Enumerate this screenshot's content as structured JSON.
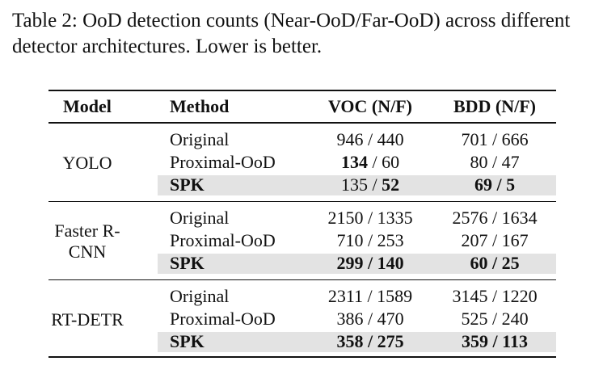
{
  "caption": "Table 2: OoD detection counts (Near-OoD/Far-OoD) across different detector architectures. Lower is better.",
  "table": {
    "columns": [
      "Model",
      "Method",
      "VOC (N/F)",
      "BDD (N/F)"
    ],
    "separator": " / ",
    "groups": [
      {
        "model": "YOLO",
        "rows": [
          {
            "method": "Original",
            "method_bold": false,
            "highlight": false,
            "voc": {
              "values": [
                946,
                440
              ],
              "bold": [
                false,
                false
              ]
            },
            "bdd": {
              "values": [
                701,
                666
              ],
              "bold": [
                false,
                false
              ]
            }
          },
          {
            "method": "Proximal-OoD",
            "method_bold": false,
            "highlight": false,
            "voc": {
              "values": [
                134,
                60
              ],
              "bold": [
                true,
                false
              ]
            },
            "bdd": {
              "values": [
                80,
                47
              ],
              "bold": [
                false,
                false
              ]
            }
          },
          {
            "method": "SPK",
            "method_bold": true,
            "highlight": true,
            "voc": {
              "values": [
                135,
                52
              ],
              "bold": [
                false,
                true
              ]
            },
            "bdd": {
              "values": [
                69,
                5
              ],
              "bold": [
                true,
                true
              ]
            }
          }
        ]
      },
      {
        "model": "Faster R-CNN",
        "rows": [
          {
            "method": "Original",
            "method_bold": false,
            "highlight": false,
            "voc": {
              "values": [
                2150,
                1335
              ],
              "bold": [
                false,
                false
              ]
            },
            "bdd": {
              "values": [
                2576,
                1634
              ],
              "bold": [
                false,
                false
              ]
            }
          },
          {
            "method": "Proximal-OoD",
            "method_bold": false,
            "highlight": false,
            "voc": {
              "values": [
                710,
                253
              ],
              "bold": [
                false,
                false
              ]
            },
            "bdd": {
              "values": [
                207,
                167
              ],
              "bold": [
                false,
                false
              ]
            }
          },
          {
            "method": "SPK",
            "method_bold": true,
            "highlight": true,
            "voc": {
              "values": [
                299,
                140
              ],
              "bold": [
                true,
                true
              ]
            },
            "bdd": {
              "values": [
                60,
                25
              ],
              "bold": [
                true,
                true
              ]
            }
          }
        ]
      },
      {
        "model": "RT-DETR",
        "rows": [
          {
            "method": "Original",
            "method_bold": false,
            "highlight": false,
            "voc": {
              "values": [
                2311,
                1589
              ],
              "bold": [
                false,
                false
              ]
            },
            "bdd": {
              "values": [
                3145,
                1220
              ],
              "bold": [
                false,
                false
              ]
            }
          },
          {
            "method": "Proximal-OoD",
            "method_bold": false,
            "highlight": false,
            "voc": {
              "values": [
                386,
                470
              ],
              "bold": [
                false,
                false
              ]
            },
            "bdd": {
              "values": [
                525,
                240
              ],
              "bold": [
                false,
                false
              ]
            }
          },
          {
            "method": "SPK",
            "method_bold": true,
            "highlight": true,
            "voc": {
              "values": [
                358,
                275
              ],
              "bold": [
                true,
                true
              ]
            },
            "bdd": {
              "values": [
                359,
                113
              ],
              "bold": [
                true,
                true
              ]
            }
          }
        ]
      }
    ]
  }
}
